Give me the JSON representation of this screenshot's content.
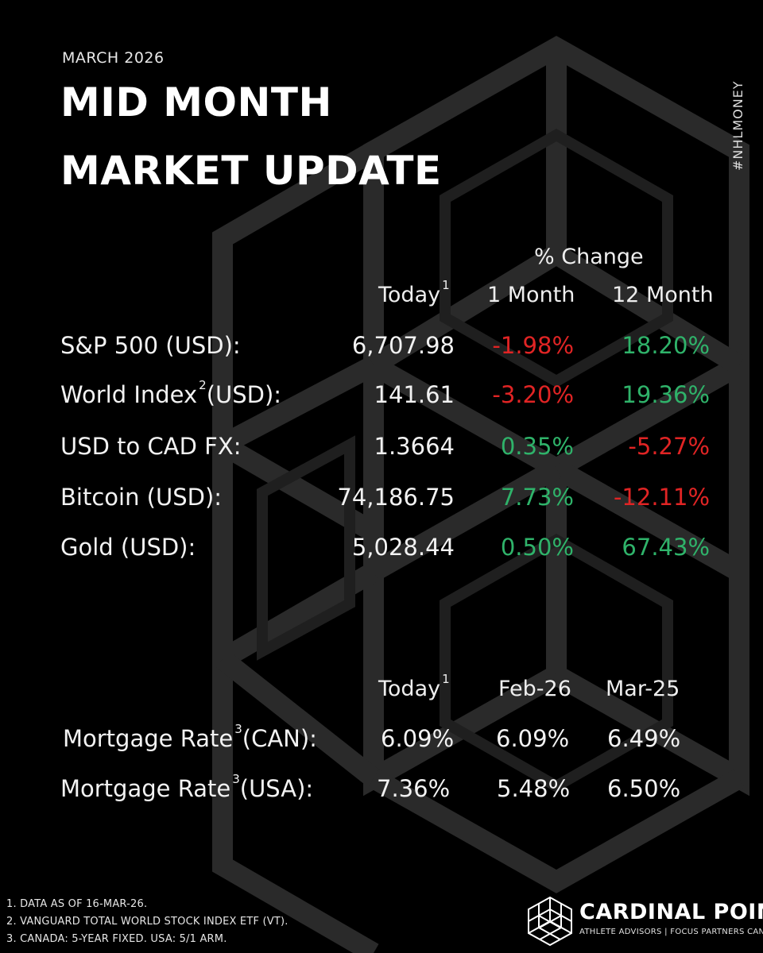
{
  "header": {
    "date": "MARCH 2026",
    "title_line1": "MID MONTH",
    "title_line2": "MARKET UPDATE",
    "hashtag": "#NHLMONEY"
  },
  "markets": {
    "group_header": "% Change",
    "col_today": "Today",
    "col_today_fn": "1",
    "col_1m": "1 Month",
    "col_12m": "12 Month",
    "rows": [
      {
        "label": "S&P 500 (USD):",
        "fn": "",
        "suffix": "",
        "today": "6,707.98",
        "m1": "-1.98%",
        "m12": "18.20%"
      },
      {
        "label": "World Index",
        "fn": "2",
        "suffix": "(USD):",
        "today": "141.61",
        "m1": "-3.20%",
        "m12": "19.36%"
      },
      {
        "label": "USD to CAD FX:",
        "fn": "",
        "suffix": "",
        "today": "1.3664",
        "m1": "0.35%",
        "m12": "-5.27%"
      },
      {
        "label": "Bitcoin (USD):",
        "fn": "",
        "suffix": "",
        "today": "74,186.75",
        "m1": "7.73%",
        "m12": "-12.11%"
      },
      {
        "label": "Gold (USD):",
        "fn": "",
        "suffix": "",
        "today": "5,028.44",
        "m1": "0.50%",
        "m12": "67.43%"
      }
    ]
  },
  "mortgage": {
    "col_today": "Today",
    "col_today_fn": "1",
    "col_feb": "Feb-26",
    "col_mar": "Mar-25",
    "rows": [
      {
        "label": "Mortgage Rate",
        "fn": "3",
        "suffix": "(CAN):",
        "today": "6.09%",
        "feb": "6.09%",
        "mar": "6.49%"
      },
      {
        "label": "Mortgage Rate",
        "fn": "3",
        "suffix": "(USA):",
        "today": "7.36%",
        "feb": "5.48%",
        "mar": "6.50%"
      }
    ]
  },
  "footnotes": [
    "1. DATA AS OF 16-MAR-26.",
    "2. VANGUARD TOTAL WORLD STOCK INDEX ETF (VT).",
    "3. CANADA: 5-YEAR FIXED. USA: 5/1 ARM."
  ],
  "logo": {
    "icon": "geometric-cube-logo-icon",
    "brand": "CARDINAL POINT",
    "tagline": "ATHLETE ADVISORS | FOCUS PARTNERS CANADA"
  },
  "colors": {
    "background": "#000000",
    "pattern": "#2a2a2a",
    "negative": "#e02424",
    "positive": "#2fb36a",
    "text": "#f2f2f2"
  }
}
